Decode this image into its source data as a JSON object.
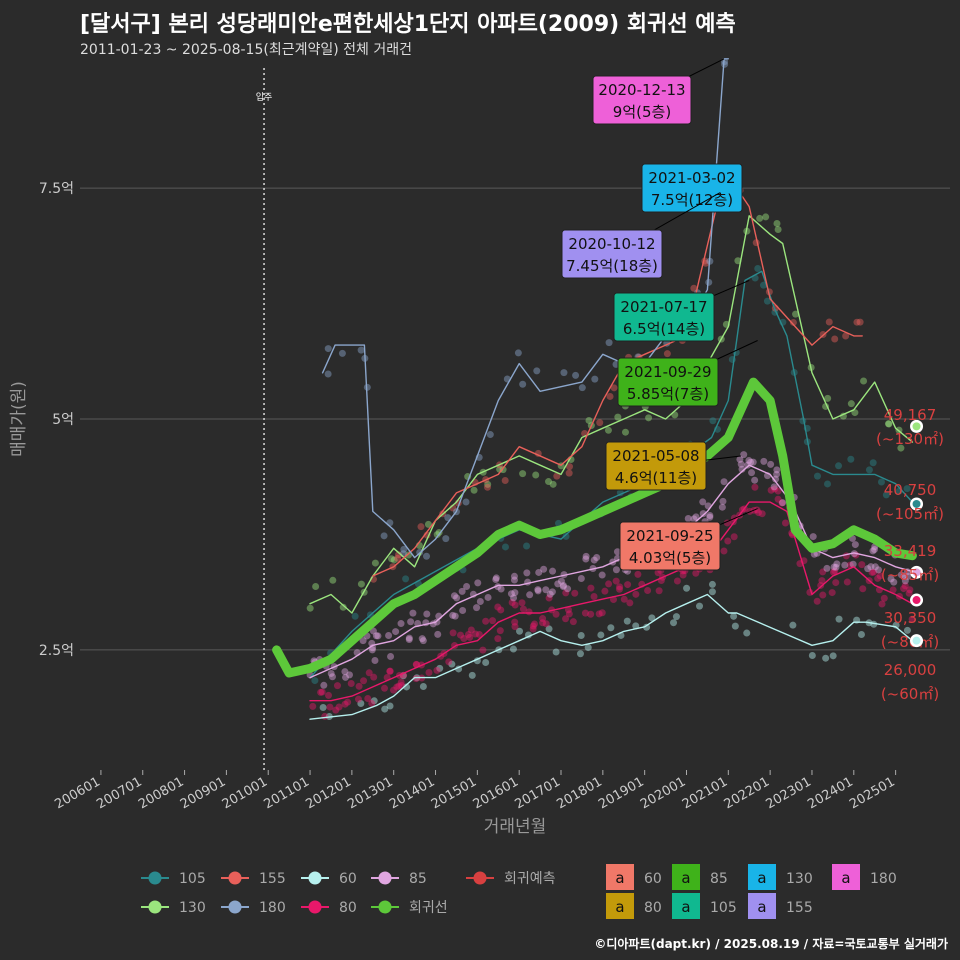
{
  "title": "[달서구] 본리 성당래미안e편한세상1단지 아파트(2009) 회귀선 예측",
  "subtitle": "2011-01-23 ~ 2025-08-15(최근계약일) 전체 거래건",
  "footer": "©디아파트(dapt.kr) / 2025.08.19 / 자료=국토교통부 실거래가",
  "colors": {
    "background": "#2b2b2b",
    "grid": "#5a5a5a",
    "regression": "#5dc83a",
    "s105": "#2a8a8e",
    "s130": "#9be57e",
    "s155": "#e8605a",
    "s180": "#8ba6cc",
    "s60": "#b6f0ee",
    "s80": "#e8186a",
    "s85": "#e0a6e0",
    "predict": "#d84040"
  },
  "chart_data": {
    "type": "line",
    "title": "[달서구] 본리 성당래미안e편한세상1단지 아파트(2009) 회귀선 예측",
    "xlabel": "거래년월",
    "ylabel": "매매가(원)",
    "x_ticks": [
      "200601",
      "200701",
      "200801",
      "200901",
      "201001",
      "201101",
      "201201",
      "201301",
      "201401",
      "201501",
      "201601",
      "201701",
      "201801",
      "201901",
      "202001",
      "202101",
      "202201",
      "202301",
      "202401",
      "202501"
    ],
    "y_ticks": [
      "2.5억",
      "5억",
      "7.5억"
    ],
    "ylim": [
      1.2,
      8.8
    ],
    "xlim": [
      2005.5,
      2026.3
    ],
    "grid": true,
    "move_in_label": "입주",
    "move_in_x": 2009.9,
    "series": [
      {
        "name": "105",
        "color": "#2a8a8e",
        "points": [
          [
            2011.0,
            2.2
          ],
          [
            2012.0,
            2.7
          ],
          [
            2013.0,
            3.1
          ],
          [
            2014.0,
            3.35
          ],
          [
            2015.0,
            3.6
          ],
          [
            2016.0,
            3.8
          ],
          [
            2017.0,
            3.7
          ],
          [
            2018.0,
            4.1
          ],
          [
            2019.0,
            4.3
          ],
          [
            2020.0,
            4.6
          ],
          [
            2020.6,
            4.8
          ],
          [
            2021.0,
            5.2
          ],
          [
            2021.4,
            6.5
          ],
          [
            2021.8,
            6.6
          ],
          [
            2022.1,
            6.2
          ],
          [
            2022.4,
            5.9
          ],
          [
            2022.8,
            5.0
          ],
          [
            2023.0,
            4.5
          ],
          [
            2023.5,
            4.4
          ],
          [
            2024.0,
            4.4
          ],
          [
            2024.5,
            4.4
          ],
          [
            2025.0,
            4.3
          ],
          [
            2025.4,
            4.1
          ]
        ]
      },
      {
        "name": "130",
        "color": "#9be57e",
        "points": [
          [
            2011.0,
            3.0
          ],
          [
            2011.5,
            3.1
          ],
          [
            2012.0,
            2.9
          ],
          [
            2012.5,
            3.3
          ],
          [
            2013.0,
            3.6
          ],
          [
            2013.5,
            3.4
          ],
          [
            2014.0,
            3.9
          ],
          [
            2014.5,
            4.1
          ],
          [
            2015.0,
            4.4
          ],
          [
            2015.5,
            4.5
          ],
          [
            2016.0,
            4.6
          ],
          [
            2016.5,
            4.5
          ],
          [
            2017.0,
            4.4
          ],
          [
            2017.5,
            4.8
          ],
          [
            2018.0,
            4.9
          ],
          [
            2018.5,
            5.0
          ],
          [
            2019.0,
            5.1
          ],
          [
            2019.5,
            5.0
          ],
          [
            2020.0,
            5.2
          ],
          [
            2020.5,
            5.6
          ],
          [
            2021.0,
            6.0
          ],
          [
            2021.5,
            7.2
          ],
          [
            2022.0,
            7.0
          ],
          [
            2022.3,
            6.9
          ],
          [
            2023.0,
            5.5
          ],
          [
            2023.5,
            5.0
          ],
          [
            2024.0,
            5.1
          ],
          [
            2024.5,
            5.4
          ],
          [
            2025.0,
            4.9
          ],
          [
            2025.4,
            4.75
          ]
        ]
      },
      {
        "name": "155",
        "color": "#e8605a",
        "points": [
          [
            2012.5,
            3.3
          ],
          [
            2013.0,
            3.4
          ],
          [
            2013.5,
            3.6
          ],
          [
            2014.0,
            3.9
          ],
          [
            2014.5,
            4.2
          ],
          [
            2015.0,
            4.3
          ],
          [
            2015.5,
            4.4
          ],
          [
            2016.0,
            4.7
          ],
          [
            2017.0,
            4.5
          ],
          [
            2017.5,
            4.7
          ],
          [
            2018.0,
            5.2
          ],
          [
            2018.5,
            5.6
          ],
          [
            2019.0,
            5.7
          ],
          [
            2019.5,
            5.8
          ],
          [
            2020.0,
            5.9
          ],
          [
            2020.3,
            6.5
          ],
          [
            2020.8,
            7.45
          ],
          [
            2021.2,
            7.5
          ],
          [
            2021.5,
            7.3
          ],
          [
            2022.0,
            6.3
          ],
          [
            2023.0,
            5.8
          ],
          [
            2023.5,
            6.0
          ],
          [
            2024.0,
            5.9
          ],
          [
            2024.2,
            5.9
          ]
        ]
      },
      {
        "name": "180",
        "color": "#8ba6cc",
        "points": [
          [
            2011.3,
            5.5
          ],
          [
            2011.6,
            5.8
          ],
          [
            2012.3,
            5.8
          ],
          [
            2012.5,
            4.0
          ],
          [
            2013.0,
            3.8
          ],
          [
            2013.5,
            3.5
          ],
          [
            2014.0,
            3.7
          ],
          [
            2014.5,
            4.0
          ],
          [
            2015.0,
            4.6
          ],
          [
            2015.5,
            5.2
          ],
          [
            2016.0,
            5.6
          ],
          [
            2016.5,
            5.3
          ],
          [
            2017.5,
            5.4
          ],
          [
            2018.0,
            5.7
          ],
          [
            2018.5,
            5.6
          ],
          [
            2019.0,
            5.6
          ],
          [
            2019.5,
            5.9
          ],
          [
            2020.0,
            6.0
          ],
          [
            2020.5,
            6.4
          ],
          [
            2020.9,
            8.9
          ],
          [
            2021.0,
            8.9
          ]
        ]
      },
      {
        "name": "60",
        "color": "#b6f0ee",
        "points": [
          [
            2011.0,
            1.75
          ],
          [
            2012.0,
            1.8
          ],
          [
            2012.6,
            1.9
          ],
          [
            2013.0,
            2.0
          ],
          [
            2013.5,
            2.2
          ],
          [
            2014.0,
            2.2
          ],
          [
            2014.5,
            2.3
          ],
          [
            2015.0,
            2.4
          ],
          [
            2015.5,
            2.5
          ],
          [
            2016.0,
            2.6
          ],
          [
            2016.5,
            2.7
          ],
          [
            2017.0,
            2.6
          ],
          [
            2017.5,
            2.55
          ],
          [
            2018.0,
            2.6
          ],
          [
            2018.5,
            2.7
          ],
          [
            2019.0,
            2.75
          ],
          [
            2019.5,
            2.9
          ],
          [
            2020.0,
            3.0
          ],
          [
            2020.5,
            3.1
          ],
          [
            2021.0,
            2.9
          ],
          [
            2021.2,
            2.9
          ],
          [
            2023.0,
            2.55
          ],
          [
            2023.5,
            2.6
          ],
          [
            2024.0,
            2.8
          ],
          [
            2024.3,
            2.8
          ],
          [
            2025.0,
            2.75
          ],
          [
            2025.4,
            2.6
          ]
        ]
      },
      {
        "name": "80",
        "color": "#e8186a",
        "points": [
          [
            2011.0,
            1.95
          ],
          [
            2011.5,
            1.95
          ],
          [
            2012.0,
            2.0
          ],
          [
            2012.5,
            2.1
          ],
          [
            2013.0,
            2.2
          ],
          [
            2013.5,
            2.3
          ],
          [
            2014.0,
            2.4
          ],
          [
            2014.5,
            2.55
          ],
          [
            2015.0,
            2.6
          ],
          [
            2015.5,
            2.8
          ],
          [
            2016.0,
            2.9
          ],
          [
            2016.5,
            2.9
          ],
          [
            2017.0,
            2.95
          ],
          [
            2017.5,
            3.0
          ],
          [
            2018.0,
            3.05
          ],
          [
            2018.5,
            3.1
          ],
          [
            2019.0,
            3.2
          ],
          [
            2019.5,
            3.3
          ],
          [
            2020.0,
            3.4
          ],
          [
            2020.5,
            3.5
          ],
          [
            2021.0,
            3.8
          ],
          [
            2021.5,
            4.1
          ],
          [
            2022.0,
            4.1
          ],
          [
            2022.4,
            4.0
          ],
          [
            2023.0,
            3.1
          ],
          [
            2023.5,
            3.3
          ],
          [
            2024.0,
            3.4
          ],
          [
            2024.5,
            3.2
          ],
          [
            2025.0,
            3.1
          ],
          [
            2025.4,
            3.0
          ]
        ]
      },
      {
        "name": "85",
        "color": "#e0a6e0",
        "points": [
          [
            2011.0,
            2.2
          ],
          [
            2011.5,
            2.3
          ],
          [
            2012.0,
            2.4
          ],
          [
            2012.5,
            2.55
          ],
          [
            2013.0,
            2.6
          ],
          [
            2013.5,
            2.75
          ],
          [
            2014.0,
            2.8
          ],
          [
            2014.5,
            3.0
          ],
          [
            2015.0,
            3.1
          ],
          [
            2015.5,
            3.2
          ],
          [
            2016.0,
            3.2
          ],
          [
            2016.5,
            3.25
          ],
          [
            2017.0,
            3.3
          ],
          [
            2017.5,
            3.35
          ],
          [
            2018.0,
            3.4
          ],
          [
            2018.5,
            3.5
          ],
          [
            2019.0,
            3.55
          ],
          [
            2019.5,
            3.65
          ],
          [
            2020.0,
            3.8
          ],
          [
            2020.5,
            4.0
          ],
          [
            2021.0,
            4.3
          ],
          [
            2021.5,
            4.5
          ],
          [
            2022.0,
            4.4
          ],
          [
            2022.5,
            4.1
          ],
          [
            2023.0,
            3.6
          ],
          [
            2023.5,
            3.5
          ],
          [
            2024.0,
            3.55
          ],
          [
            2024.5,
            3.5
          ],
          [
            2025.0,
            3.4
          ],
          [
            2025.4,
            3.35
          ]
        ]
      },
      {
        "name": "회귀선",
        "color": "#5dc83a",
        "width": 9,
        "points": [
          [
            2010.2,
            2.5
          ],
          [
            2010.5,
            2.25
          ],
          [
            2011.0,
            2.3
          ],
          [
            2011.5,
            2.4
          ],
          [
            2012.0,
            2.6
          ],
          [
            2012.5,
            2.8
          ],
          [
            2013.0,
            3.0
          ],
          [
            2013.5,
            3.1
          ],
          [
            2014.0,
            3.25
          ],
          [
            2014.5,
            3.4
          ],
          [
            2015.0,
            3.55
          ],
          [
            2015.5,
            3.75
          ],
          [
            2016.0,
            3.85
          ],
          [
            2016.5,
            3.75
          ],
          [
            2017.0,
            3.8
          ],
          [
            2017.5,
            3.9
          ],
          [
            2018.0,
            4.0
          ],
          [
            2018.5,
            4.1
          ],
          [
            2019.0,
            4.2
          ],
          [
            2019.5,
            4.3
          ],
          [
            2020.0,
            4.45
          ],
          [
            2020.5,
            4.6
          ],
          [
            2021.0,
            4.8
          ],
          [
            2021.3,
            5.1
          ],
          [
            2021.6,
            5.4
          ],
          [
            2022.0,
            5.2
          ],
          [
            2022.3,
            4.6
          ],
          [
            2022.6,
            3.8
          ],
          [
            2023.0,
            3.6
          ],
          [
            2023.5,
            3.65
          ],
          [
            2024.0,
            3.8
          ],
          [
            2024.5,
            3.7
          ],
          [
            2025.0,
            3.55
          ],
          [
            2025.4,
            3.52
          ]
        ]
      }
    ],
    "predictions": [
      {
        "label": "49,167",
        "area": "(~130㎡)",
        "value": 4.92,
        "color": "#9be57e"
      },
      {
        "label": "40,750",
        "area": "(~105㎡)",
        "value": 4.08,
        "color": "#2a8a8e"
      },
      {
        "label": "33,419",
        "area": "(~85㎡)",
        "value": 3.34,
        "color": "#e0a6e0"
      },
      {
        "label": "30,350",
        "area": "(~80㎡)",
        "value": 3.04,
        "color": "#e8186a"
      },
      {
        "label": "26,000",
        "area": "(~60㎡)",
        "value": 2.6,
        "color": "#b6f0ee"
      }
    ],
    "annotations": [
      {
        "date": "2020-12-13",
        "price": "9억(5층)",
        "fill": "#ee60d8",
        "size": "180"
      },
      {
        "date": "2021-03-02",
        "price": "7.5억(12층)",
        "fill": "#19b4e8",
        "size": "130"
      },
      {
        "date": "2020-10-12",
        "price": "7.45억(18층)",
        "fill": "#a090f0",
        "size": "155"
      },
      {
        "date": "2021-07-17",
        "price": "6.5억(14층)",
        "fill": "#10b890",
        "size": "105"
      },
      {
        "date": "2021-09-29",
        "price": "5.85억(7층)",
        "fill": "#3fb21a",
        "size": "85"
      },
      {
        "date": "2021-05-08",
        "price": "4.6억(11층)",
        "fill": "#c39a0a",
        "size": "80"
      },
      {
        "date": "2021-09-25",
        "price": "4.03억(5층)",
        "fill": "#f07868",
        "size": "60"
      }
    ],
    "legend_line": [
      {
        "name": "105",
        "color": "#2a8a8e"
      },
      {
        "name": "155",
        "color": "#e8605a"
      },
      {
        "name": "60",
        "color": "#b6f0ee"
      },
      {
        "name": "85",
        "color": "#e0a6e0"
      },
      {
        "name": "회귀예측",
        "color": "#d84040"
      },
      {
        "name": "130",
        "color": "#9be57e"
      },
      {
        "name": "180",
        "color": "#8ba6cc"
      },
      {
        "name": "80",
        "color": "#e8186a"
      },
      {
        "name": "회귀선",
        "color": "#5dc83a"
      }
    ],
    "legend_box": [
      {
        "name": "60",
        "color": "#f07868"
      },
      {
        "name": "85",
        "color": "#3fb21a"
      },
      {
        "name": "130",
        "color": "#19b4e8"
      },
      {
        "name": "180",
        "color": "#ee60d8"
      },
      {
        "name": "80",
        "color": "#c39a0a"
      },
      {
        "name": "105",
        "color": "#10b890"
      },
      {
        "name": "155",
        "color": "#a090f0"
      }
    ],
    "legend_box_glyph": "a"
  }
}
